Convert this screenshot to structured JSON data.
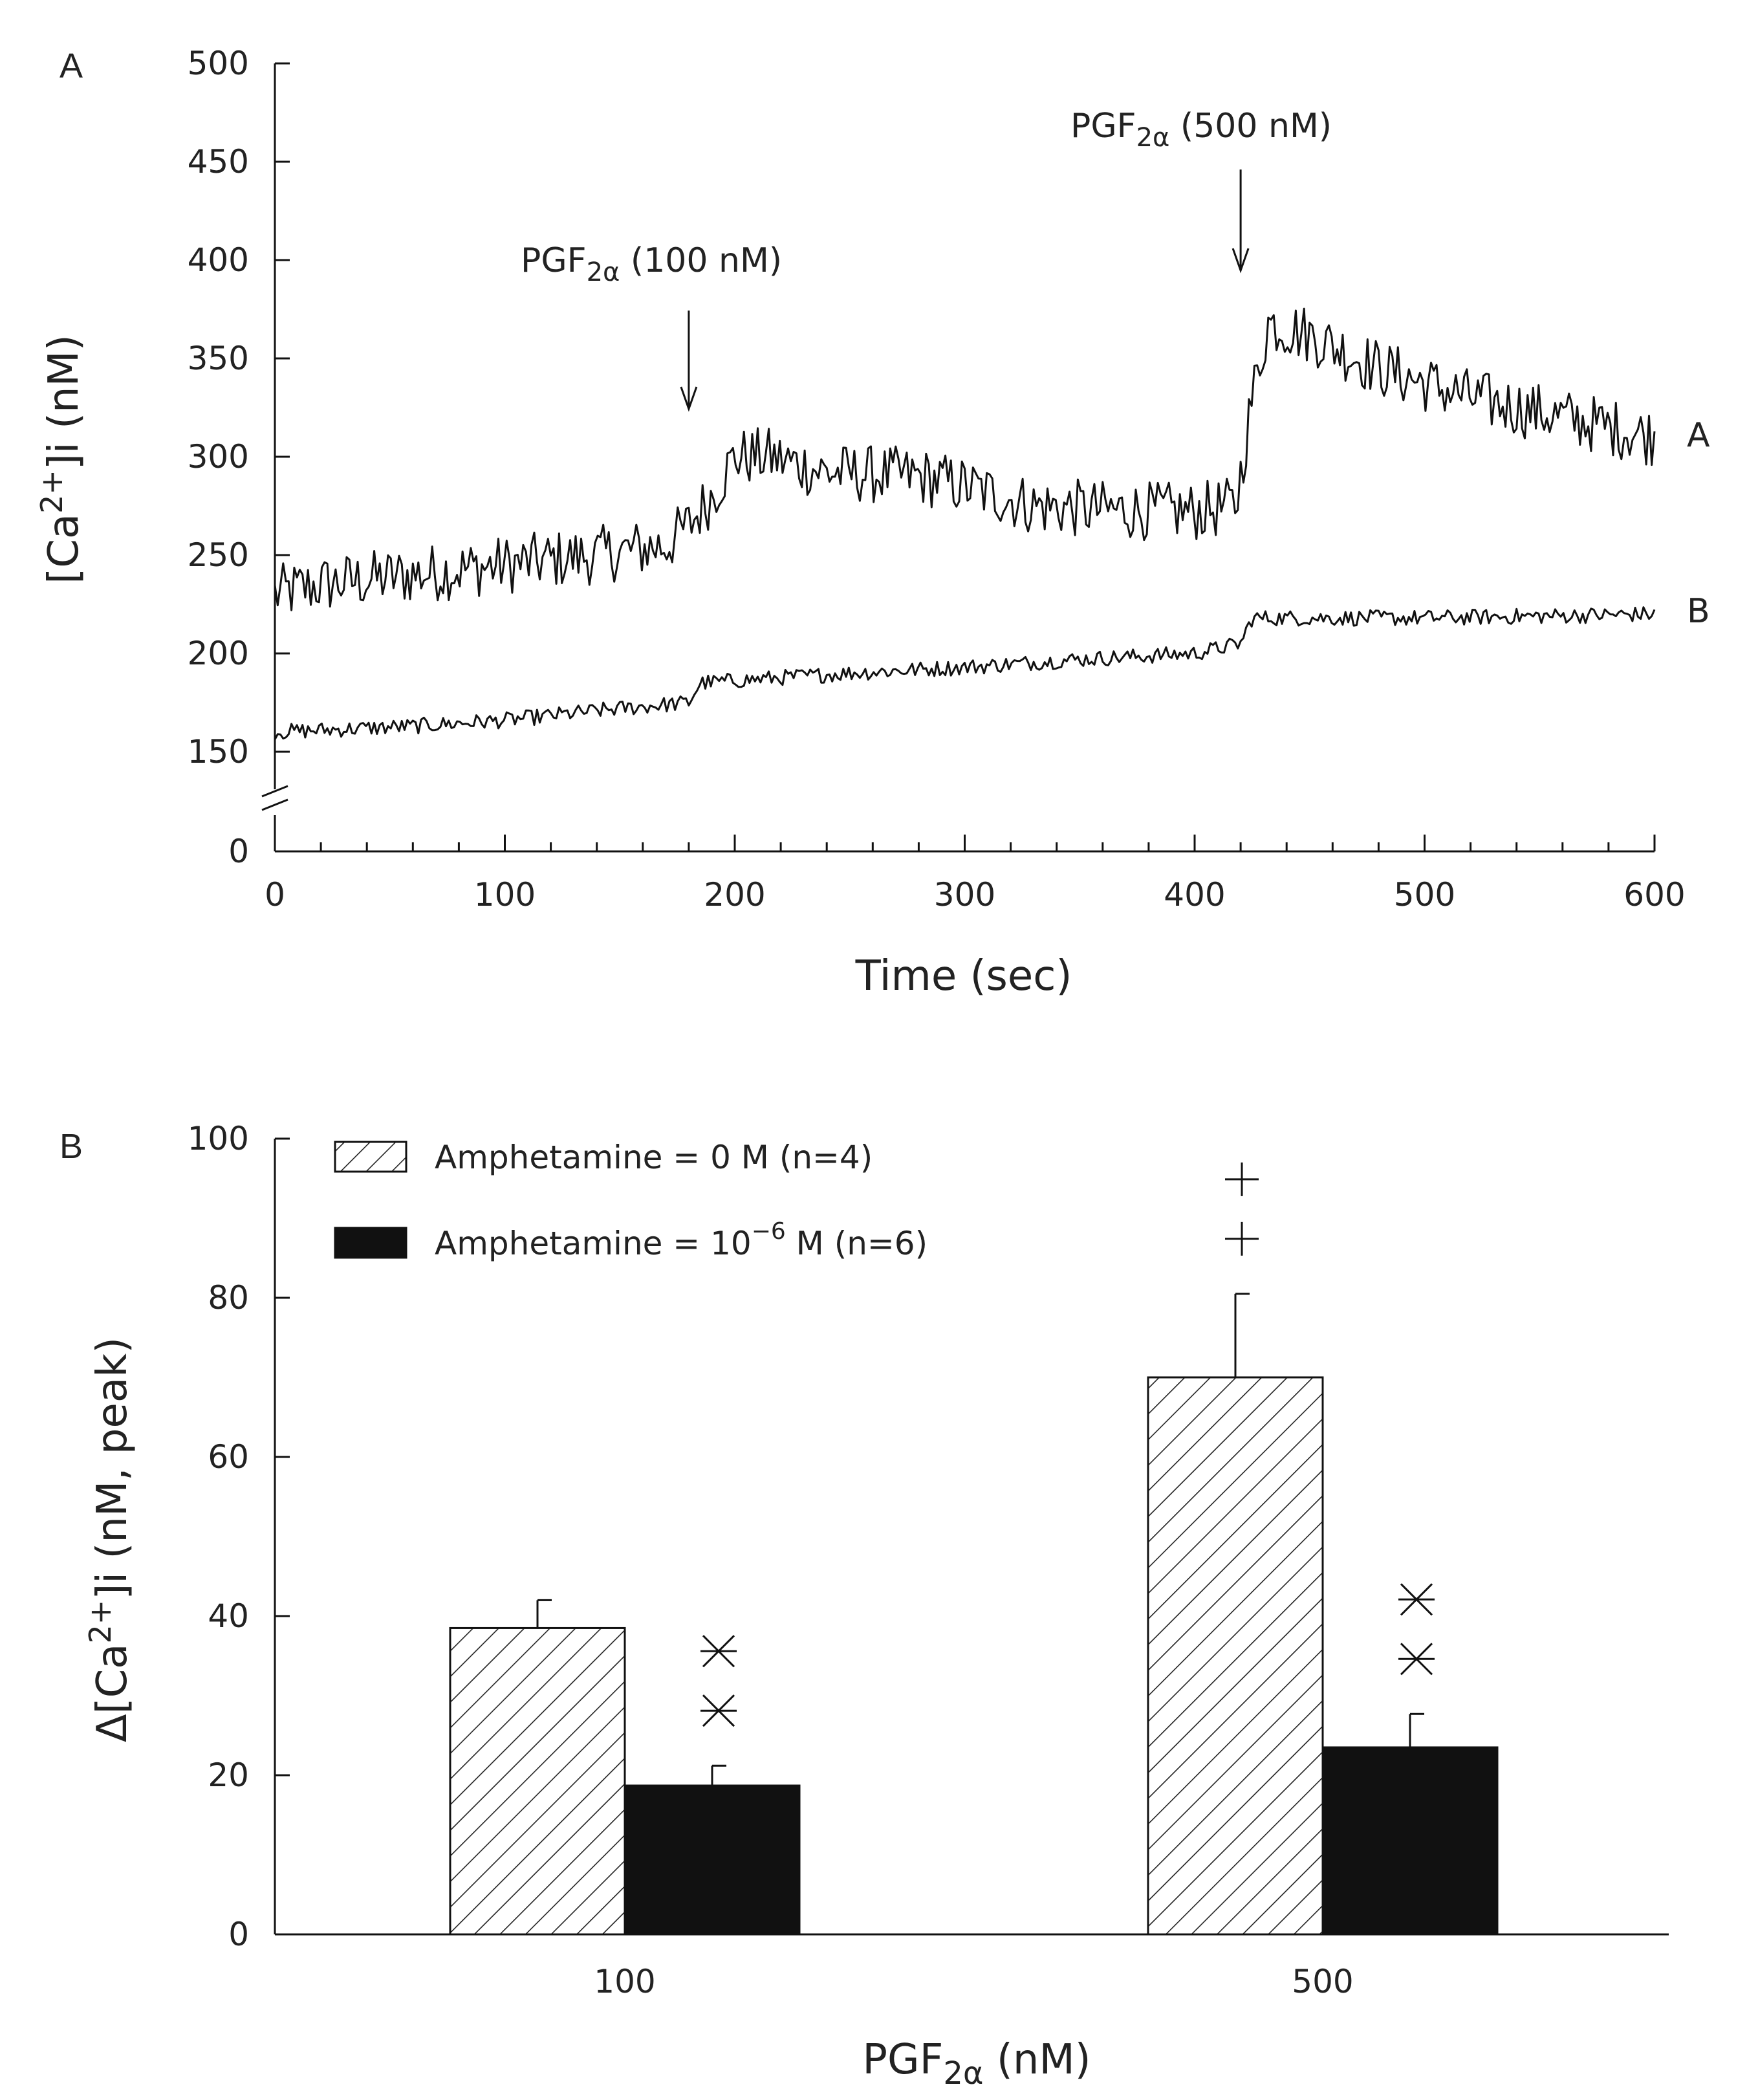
{
  "colors": {
    "ink": "#111111",
    "text": "#222222",
    "background": "#ffffff"
  },
  "chart_data": [
    {
      "type": "line",
      "panel": "A",
      "xlabel": "Time (sec)",
      "ylabel": "[Ca2+]i (nM)",
      "xlim": [
        0,
        600
      ],
      "ylim_display": [
        150,
        500
      ],
      "axis_break": true,
      "x_ticks": [
        0,
        100,
        200,
        300,
        400,
        500,
        600
      ],
      "x_tick_labels": [
        "0",
        "100",
        "200",
        "300",
        "400",
        "500",
        "600"
      ],
      "y_ticks": [
        0,
        150,
        200,
        250,
        300,
        350,
        400,
        450,
        500
      ],
      "y_tick_labels": [
        "0",
        "150",
        "200",
        "250",
        "300",
        "350",
        "400",
        "450",
        "500"
      ],
      "series": [
        {
          "name": "A",
          "noise": 15,
          "keyframes": [
            [
              0,
              230
            ],
            [
              20,
              235
            ],
            [
              60,
              240
            ],
            [
              100,
              245
            ],
            [
              140,
              250
            ],
            [
              170,
              255
            ],
            [
              180,
              265
            ],
            [
              190,
              280
            ],
            [
              200,
              300
            ],
            [
              215,
              300
            ],
            [
              240,
              292
            ],
            [
              280,
              290
            ],
            [
              300,
              285
            ],
            [
              330,
              275
            ],
            [
              360,
              273
            ],
            [
              400,
              272
            ],
            [
              418,
              275
            ],
            [
              425,
              330
            ],
            [
              432,
              368
            ],
            [
              450,
              362
            ],
            [
              480,
              345
            ],
            [
              520,
              330
            ],
            [
              560,
              320
            ],
            [
              600,
              310
            ]
          ]
        },
        {
          "name": "B",
          "noise": 4,
          "keyframes": [
            [
              0,
              160
            ],
            [
              60,
              163
            ],
            [
              100,
              166
            ],
            [
              150,
              172
            ],
            [
              180,
              175
            ],
            [
              185,
              185
            ],
            [
              250,
              190
            ],
            [
              300,
              193
            ],
            [
              350,
              197
            ],
            [
              400,
              200
            ],
            [
              420,
              205
            ],
            [
              425,
              218
            ],
            [
              460,
              218
            ],
            [
              500,
              218
            ],
            [
              600,
              220
            ]
          ]
        }
      ],
      "annotations": [
        {
          "base": "PGF",
          "sub": "2α",
          "tail": " (100 nM)",
          "time": 180
        },
        {
          "base": "PGF",
          "sub": "2α",
          "tail": " (500 nM)",
          "time": 420
        }
      ],
      "series_labels": [
        "A",
        "B"
      ]
    },
    {
      "type": "bar",
      "panel": "B",
      "categories": [
        "100",
        "500"
      ],
      "xlabel_base": "PGF",
      "xlabel_sub": "2α",
      "xlabel_tail": " (nM)",
      "ylabel": "Δ[Ca2+]i (nM, peak)",
      "ylim": [
        0,
        100
      ],
      "y_ticks": [
        0,
        20,
        40,
        60,
        80,
        100
      ],
      "y_tick_labels": [
        "0",
        "20",
        "40",
        "60",
        "80",
        "100"
      ],
      "series": [
        {
          "name": "Amphetamine = 0 M (n=4)",
          "pattern": "hatched",
          "values": [
            38.5,
            70
          ],
          "errors": [
            3.5,
            10.5
          ]
        },
        {
          "name": "Amphetamine = 10⁻⁶ M (n=6)",
          "pattern": "solid",
          "values": [
            18.7,
            23.5
          ],
          "errors": [
            2.5,
            4.2
          ]
        }
      ],
      "legend": [
        {
          "pre": "Amphetamine = 0 M (n=4)",
          "sup": "",
          "post": ""
        },
        {
          "pre": "Amphetamine = 10",
          "sup": "−6",
          "post": " M (n=6)"
        }
      ],
      "significance": [
        {
          "category": "100",
          "series": "Amphetamine = 10⁻⁶ M (n=6)",
          "marks": [
            "✕",
            "✕"
          ]
        },
        {
          "category": "500",
          "series": "Amphetamine = 10⁻⁶ M (n=6)",
          "marks": [
            "✕",
            "✕"
          ]
        },
        {
          "category": "500",
          "series": "Amphetamine = 0 M (n=4)",
          "marks": [
            "+",
            "+"
          ]
        }
      ]
    }
  ]
}
